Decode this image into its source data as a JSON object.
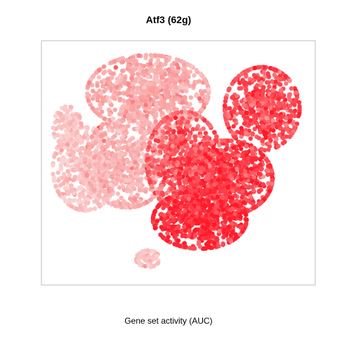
{
  "chart_data": {
    "type": "scatter",
    "title": "Atf3 (62g)",
    "xlabel": "Gene set activity (AUC)",
    "ylabel": "",
    "grid": false,
    "legend": "none",
    "axes_visible": false,
    "color_scale": {
      "low": "#fbd3d3",
      "mid": "#f99a9a",
      "high": "#ff1a2a"
    },
    "clusters": [
      {
        "name": "top-left cloud",
        "cx": 0.38,
        "cy": 0.8,
        "sx": 0.13,
        "sy": 0.09,
        "activity": 0.35,
        "n": 900
      },
      {
        "name": "left lobe",
        "cx": 0.14,
        "cy": 0.47,
        "sx": 0.07,
        "sy": 0.1,
        "activity": 0.12,
        "n": 500
      },
      {
        "name": "central left",
        "cx": 0.3,
        "cy": 0.5,
        "sx": 0.09,
        "sy": 0.11,
        "activity": 0.3,
        "n": 650
      },
      {
        "name": "far-left tail",
        "cx": 0.07,
        "cy": 0.65,
        "sx": 0.03,
        "sy": 0.05,
        "activity": 0.1,
        "n": 120
      },
      {
        "name": "central right",
        "cx": 0.52,
        "cy": 0.5,
        "sx": 0.08,
        "sy": 0.12,
        "activity": 0.75,
        "n": 650
      },
      {
        "name": "right-mid cluster",
        "cx": 0.68,
        "cy": 0.43,
        "sx": 0.1,
        "sy": 0.09,
        "activity": 0.85,
        "n": 800
      },
      {
        "name": "upper-right cluster",
        "cx": 0.82,
        "cy": 0.73,
        "sx": 0.08,
        "sy": 0.1,
        "activity": 0.8,
        "n": 600
      },
      {
        "name": "bottom cluster",
        "cx": 0.58,
        "cy": 0.25,
        "sx": 0.1,
        "sy": 0.07,
        "activity": 0.92,
        "n": 650
      },
      {
        "name": "small bottom island",
        "cx": 0.38,
        "cy": 0.08,
        "sx": 0.025,
        "sy": 0.02,
        "activity": 0.15,
        "n": 70
      }
    ]
  }
}
